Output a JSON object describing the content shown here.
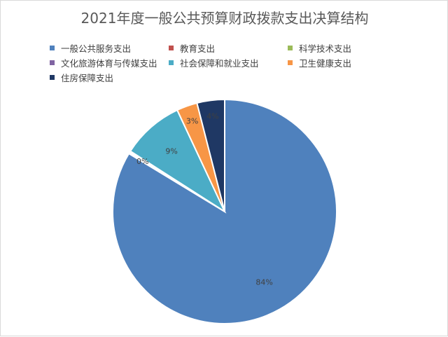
{
  "chart_data": {
    "type": "pie",
    "title": "2021年度一般公共预算财政拨款支出决算结构",
    "legend_position": "top",
    "slices": [
      {
        "name": "一般公共服务支出",
        "value": 84,
        "label": "84%",
        "color": "#4f81bd"
      },
      {
        "name": "教育支出",
        "value": 0.2,
        "label": "0%",
        "color": "#c0504d"
      },
      {
        "name": "科学技术支出",
        "value": 0.1,
        "label": "",
        "color": "#9bbb59"
      },
      {
        "name": "文化旅游体育与传媒支出",
        "value": 0.1,
        "label": "",
        "color": "#8064a2"
      },
      {
        "name": "社会保障和就业支出",
        "value": 9,
        "label": "9%",
        "color": "#4bacc6"
      },
      {
        "name": "卫生健康支出",
        "value": 3,
        "label": "3%",
        "color": "#f79646"
      },
      {
        "name": "住房保障支出",
        "value": 4,
        "label": "4%",
        "color": "#1f3864"
      }
    ]
  }
}
